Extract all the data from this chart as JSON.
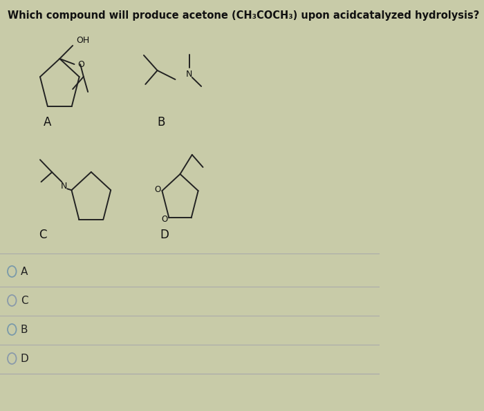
{
  "bg_color": "#c8cba8",
  "title_line1": "Which compound will produce acetone (CH₃COCH₃) upon acid⁠catalyzed hydrolysis?",
  "radio_colors": [
    "#7a9aaa",
    "#8a9aaa",
    "#7a9aaa",
    "#8a9aaa"
  ],
  "options": [
    "A",
    "C",
    "B",
    "D"
  ],
  "option_filled": [
    false,
    false,
    false,
    false
  ],
  "struct_lw": 1.4
}
